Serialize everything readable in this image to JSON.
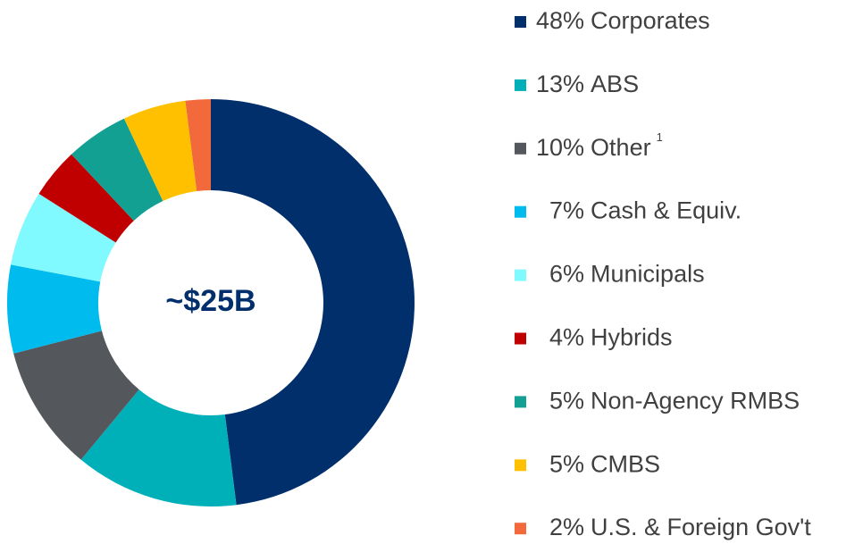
{
  "chart_data": {
    "type": "pie",
    "donut": true,
    "center_label": "~$25B",
    "categories": [
      "Corporates",
      "ABS",
      "Other",
      "Cash & Equiv.",
      "Municipals",
      "Hybrids",
      "Non-Agency RMBS",
      "CMBS",
      "U.S. & Foreign Gov't"
    ],
    "values": [
      48,
      13,
      10,
      7,
      6,
      4,
      5,
      5,
      2
    ],
    "value_labels": [
      "48%",
      "13%",
      "10%",
      "7%",
      "6%",
      "4%",
      "5%",
      "5%",
      "2%"
    ],
    "colors": [
      "#002f6c",
      "#00b0b9",
      "#54575b",
      "#00bbee",
      "#80f9ff",
      "#c00000",
      "#12a092",
      "#ffc000",
      "#f26a3c"
    ],
    "annotations": [
      {
        "category": "Other",
        "text": "1"
      }
    ]
  }
}
